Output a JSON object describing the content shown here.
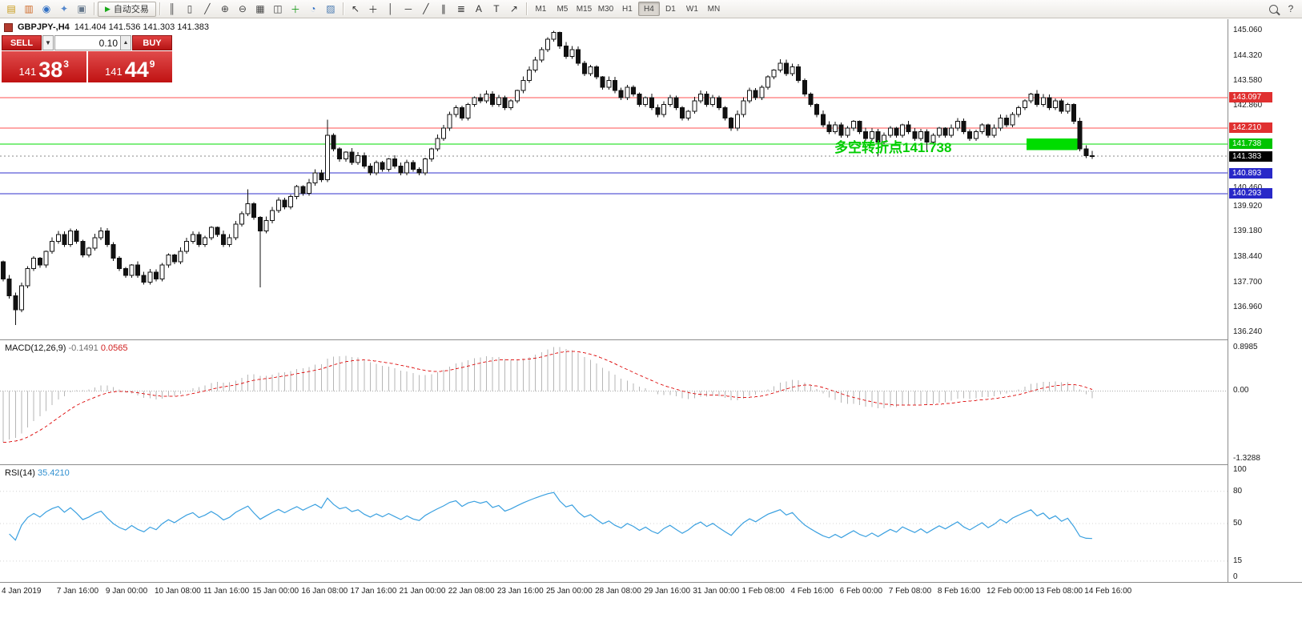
{
  "toolbar": {
    "autotrading_label": "自动交易",
    "autotrading_play_glyph": "▶",
    "file_icons": [
      {
        "name": "new-order-icon",
        "glyph": "▤",
        "color": "#c79810"
      },
      {
        "name": "chart-window-icon",
        "glyph": "▥",
        "color": "#cf6a28"
      },
      {
        "name": "market-watch-icon",
        "glyph": "◉",
        "color": "#2f6fc4"
      },
      {
        "name": "navigator-icon",
        "glyph": "✦",
        "color": "#5588cc"
      },
      {
        "name": "terminal-icon",
        "glyph": "▣",
        "color": "#66788c"
      }
    ],
    "chart_icons": [
      {
        "name": "bar-chart-icon",
        "glyph": "║",
        "color": "#444444"
      },
      {
        "name": "candlestick-chart-icon",
        "glyph": "▯",
        "color": "#444444"
      },
      {
        "name": "line-chart-icon",
        "glyph": "╱",
        "color": "#444444"
      },
      {
        "name": "zoom-in-icon",
        "glyph": "⊕",
        "color": "#444444"
      },
      {
        "name": "zoom-out-icon",
        "glyph": "⊖",
        "color": "#444444"
      },
      {
        "name": "grid-icon",
        "glyph": "▦",
        "color": "#444444"
      },
      {
        "name": "tile-windows-icon",
        "glyph": "◫",
        "color": "#444444"
      },
      {
        "name": "indicators-icon",
        "glyph": "＋",
        "color": "#1d9b1d"
      },
      {
        "name": "periods-icon",
        "glyph": "◔",
        "color": "#2f6fc4"
      },
      {
        "name": "template-icon",
        "glyph": "▨",
        "color": "#4a7ab0"
      }
    ],
    "draw_icons": [
      {
        "name": "cursor-icon",
        "glyph": "↖",
        "color": "#333333"
      },
      {
        "name": "crosshair-icon",
        "glyph": "＋",
        "color": "#333333"
      },
      {
        "name": "vertical-line-icon",
        "glyph": "│",
        "color": "#333333"
      },
      {
        "name": "horizontal-line-icon",
        "glyph": "─",
        "color": "#333333"
      },
      {
        "name": "trendline-icon",
        "glyph": "╱",
        "color": "#333333"
      },
      {
        "name": "channel-icon",
        "glyph": "∥",
        "color": "#333333"
      },
      {
        "name": "fibonacci-icon",
        "glyph": "≣",
        "color": "#333333"
      },
      {
        "name": "text-icon",
        "glyph": "A",
        "color": "#333333"
      },
      {
        "name": "label-icon",
        "glyph": "T",
        "color": "#333333"
      },
      {
        "name": "arrows-icon",
        "glyph": "↗",
        "color": "#333333"
      }
    ],
    "timeframes": [
      "M1",
      "M5",
      "M15",
      "M30",
      "H1",
      "H4",
      "D1",
      "W1",
      "MN"
    ],
    "active_timeframe": "H4",
    "right_icons": [
      {
        "name": "search-icon",
        "glyph": "",
        "color": "#444444"
      },
      {
        "name": "help-icon",
        "glyph": "?",
        "color": "#444444"
      }
    ]
  },
  "order_panel": {
    "sell_label": "SELL",
    "buy_label": "BUY",
    "dropdown_glyph": "▼",
    "spin_up_glyph": "▲",
    "lot_size": "0.10",
    "sell_price_prefix": "141",
    "sell_price_big": "38",
    "sell_price_sup": "3",
    "buy_price_prefix": "141",
    "buy_price_big": "44",
    "buy_price_sup": "9"
  },
  "chart": {
    "symbol": "GBPJPY-,H4",
    "ohlc": "141.404 141.536 141.303 141.383",
    "price_scale": {
      "max": 145.06,
      "min": 136.24
    },
    "hlines": [
      {
        "price": 143.097,
        "label": "143.097",
        "color": "#ff5050",
        "label_bg": "#e03030"
      },
      {
        "price": 142.21,
        "label": "142.210",
        "color": "#ff5050",
        "label_bg": "#e03030"
      },
      {
        "price": 141.738,
        "label": "141.738",
        "color": "#00dd00",
        "label_bg": "#00c400"
      },
      {
        "price": 140.893,
        "label": "140.893",
        "color": "#3232cc",
        "label_bg": "#2828c8"
      },
      {
        "price": 140.293,
        "label": "140.293",
        "color": "#3232cc",
        "label_bg": "#2828c8"
      }
    ],
    "current_price": {
      "price": 141.383,
      "label": "141.383",
      "line_color": "#888888",
      "label_bg": "#000000"
    },
    "price_axis_labels": [
      "145.060",
      "144.320",
      "143.580",
      "142.860",
      "140.460",
      "139.920",
      "139.180",
      "138.440",
      "137.700",
      "136.960",
      "136.240"
    ],
    "annotation": {
      "text": "多空转折点141.738",
      "color": "#00cc00"
    },
    "highlight_box": {
      "bar_start": 167.3,
      "bar_end": 175.6,
      "price_top": 141.9,
      "price_bottom": 141.56,
      "color": "#00dd00"
    },
    "time_axis": [
      {
        "bar": 0,
        "label": "4 Jan 2019"
      },
      {
        "bar": 9,
        "label": "7 Jan 16:00"
      },
      {
        "bar": 17,
        "label": "9 Jan 00:00"
      },
      {
        "bar": 25,
        "label": "10 Jan 08:00"
      },
      {
        "bar": 33,
        "label": "11 Jan 16:00"
      },
      {
        "bar": 41,
        "label": "15 Jan 00:00"
      },
      {
        "bar": 49,
        "label": "16 Jan 08:00"
      },
      {
        "bar": 57,
        "label": "17 Jan 16:00"
      },
      {
        "bar": 65,
        "label": "21 Jan 00:00"
      },
      {
        "bar": 73,
        "label": "22 Jan 08:00"
      },
      {
        "bar": 81,
        "label": "23 Jan 16:00"
      },
      {
        "bar": 89,
        "label": "25 Jan 00:00"
      },
      {
        "bar": 97,
        "label": "28 Jan 08:00"
      },
      {
        "bar": 105,
        "label": "29 Jan 16:00"
      },
      {
        "bar": 113,
        "label": "31 Jan 00:00"
      },
      {
        "bar": 121,
        "label": "1 Feb 08:00"
      },
      {
        "bar": 129,
        "label": "4 Feb 16:00"
      },
      {
        "bar": 137,
        "label": "6 Feb 00:00"
      },
      {
        "bar": 145,
        "label": "7 Feb 08:00"
      },
      {
        "bar": 153,
        "label": "8 Feb 16:00"
      },
      {
        "bar": 161,
        "label": "12 Feb 00:00"
      },
      {
        "bar": 169,
        "label": "13 Feb 08:00"
      },
      {
        "bar": 177,
        "label": "14 Feb 16:00"
      }
    ]
  },
  "chart_data": {
    "type": "candlestick",
    "symbol": "GBPJPY",
    "timeframe": "H4",
    "first_open": 138.3,
    "closes": [
      137.8,
      137.3,
      136.9,
      137.6,
      138.1,
      138.4,
      138.2,
      138.6,
      138.9,
      139.1,
      138.8,
      139.2,
      138.9,
      138.5,
      138.7,
      139.0,
      139.2,
      138.8,
      138.4,
      138.1,
      137.9,
      138.2,
      137.9,
      137.7,
      138.0,
      137.8,
      138.2,
      138.5,
      138.3,
      138.6,
      138.9,
      139.1,
      138.8,
      139.0,
      139.3,
      139.1,
      138.8,
      139.0,
      139.4,
      139.7,
      140.0,
      139.6,
      139.2,
      139.5,
      139.8,
      140.1,
      139.9,
      140.2,
      140.5,
      140.3,
      140.6,
      140.9,
      140.7,
      142.0,
      141.6,
      141.3,
      141.5,
      141.2,
      141.4,
      141.1,
      140.9,
      141.2,
      141.0,
      141.3,
      141.1,
      140.9,
      141.2,
      141.0,
      140.9,
      141.3,
      141.6,
      141.9,
      142.2,
      142.6,
      142.8,
      142.5,
      142.9,
      143.1,
      143.0,
      143.2,
      142.9,
      143.1,
      142.8,
      143.0,
      143.3,
      143.6,
      143.9,
      144.2,
      144.5,
      144.8,
      145.0,
      144.6,
      144.3,
      144.5,
      144.1,
      143.8,
      144.0,
      143.7,
      143.4,
      143.6,
      143.3,
      143.1,
      143.4,
      143.2,
      142.9,
      143.1,
      142.8,
      142.6,
      142.9,
      143.1,
      142.8,
      142.5,
      142.7,
      143.0,
      143.2,
      142.9,
      143.1,
      142.8,
      142.5,
      142.2,
      142.6,
      143.0,
      143.3,
      143.1,
      143.4,
      143.7,
      143.9,
      144.1,
      143.8,
      144.0,
      143.6,
      143.2,
      142.9,
      142.6,
      142.3,
      142.1,
      142.3,
      142.0,
      142.2,
      142.4,
      142.1,
      141.9,
      142.1,
      141.8,
      142.0,
      142.2,
      142.0,
      142.3,
      142.1,
      141.9,
      142.1,
      141.8,
      142.0,
      142.2,
      142.0,
      142.2,
      142.4,
      142.1,
      141.9,
      142.1,
      142.3,
      142.0,
      142.2,
      142.5,
      142.3,
      142.6,
      142.8,
      143.0,
      143.2,
      142.9,
      143.1,
      142.8,
      143.0,
      142.7,
      142.9,
      142.4,
      141.6,
      141.404,
      141.383
    ],
    "wick_overrides": [
      {
        "i": 2,
        "low": 136.45
      },
      {
        "i": 40,
        "high": 140.42
      },
      {
        "i": 42,
        "low": 137.55
      },
      {
        "i": 53,
        "high": 142.45
      },
      {
        "i": 90,
        "high": 145.05
      },
      {
        "i": 143,
        "low": 141.38
      },
      {
        "i": 151,
        "low": 141.52
      },
      {
        "i": 178,
        "high": 141.536,
        "low": 141.303
      }
    ],
    "indicators": {
      "macd": {
        "label": "MACD(12,26,9)",
        "value_main": "-0.1491",
        "value_signal": "0.0565",
        "fast": 12,
        "slow": 26,
        "signal": 9,
        "seed_offsets": [
          -0.4,
          0.7
        ],
        "axis_top": "0.8985",
        "axis_zero": "0.00",
        "axis_bottom": "-1.3288",
        "hist_color": "#b6b6b6",
        "signal_color": "#e02020"
      },
      "rsi": {
        "label": "RSI(14)",
        "value": "35.4210",
        "period": 14,
        "levels": [
          80,
          50,
          15
        ],
        "axis_labels": [
          "100",
          "80",
          "50",
          "15",
          "0"
        ],
        "line_color": "#3aa0e0"
      }
    }
  }
}
